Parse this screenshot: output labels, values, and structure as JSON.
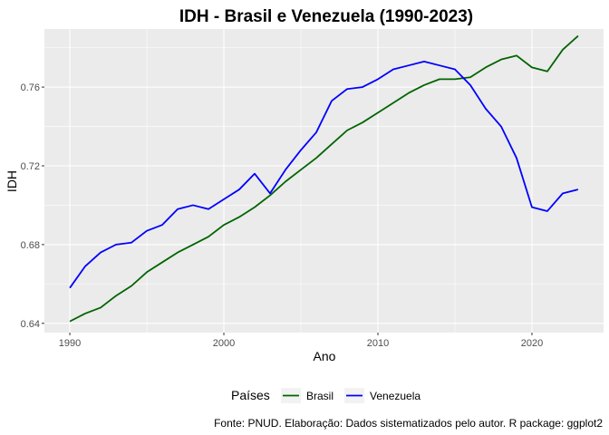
{
  "chart_data": {
    "type": "line",
    "title": "IDH - Brasil e Venezuela (1990-2023)",
    "xlabel": "Ano",
    "ylabel": "IDH",
    "xlim": [
      1988.35,
      2024.65
    ],
    "ylim": [
      0.6353,
      0.7895
    ],
    "x_ticks": [
      1990,
      2000,
      2010,
      2020
    ],
    "y_ticks": [
      0.64,
      0.68,
      0.72,
      0.76
    ],
    "y_tick_labels": [
      "0.64",
      "0.68",
      "0.72",
      "0.76"
    ],
    "grid": true,
    "legend_title": "Países",
    "legend_position": "bottom",
    "caption": "Fonte: PNUD. Elaboração: Dados sistematizados pelo autor. R package: ggplot2",
    "x": [
      1990,
      1991,
      1992,
      1993,
      1994,
      1995,
      1996,
      1997,
      1998,
      1999,
      2000,
      2001,
      2002,
      2003,
      2004,
      2005,
      2006,
      2007,
      2008,
      2009,
      2010,
      2011,
      2012,
      2013,
      2014,
      2015,
      2016,
      2017,
      2018,
      2019,
      2020,
      2021,
      2022,
      2023
    ],
    "series": [
      {
        "name": "Brasil",
        "color": "#006400",
        "values": [
          0.641,
          0.645,
          0.648,
          0.654,
          0.659,
          0.666,
          0.671,
          0.676,
          0.68,
          0.684,
          0.69,
          0.694,
          0.699,
          0.705,
          0.712,
          0.718,
          0.724,
          0.731,
          0.738,
          0.742,
          0.747,
          0.752,
          0.757,
          0.761,
          0.764,
          0.764,
          0.765,
          0.77,
          0.774,
          0.776,
          0.77,
          0.768,
          0.779,
          0.786
        ]
      },
      {
        "name": "Venezuela",
        "color": "#0000ff",
        "values": [
          0.658,
          0.669,
          0.676,
          0.68,
          0.681,
          0.687,
          0.69,
          0.698,
          0.7,
          0.698,
          0.703,
          0.708,
          0.716,
          0.706,
          0.718,
          0.728,
          0.737,
          0.753,
          0.759,
          0.76,
          0.764,
          0.769,
          0.771,
          0.773,
          0.771,
          0.769,
          0.761,
          0.749,
          0.74,
          0.724,
          0.699,
          0.697,
          0.706,
          0.708
        ]
      }
    ]
  }
}
